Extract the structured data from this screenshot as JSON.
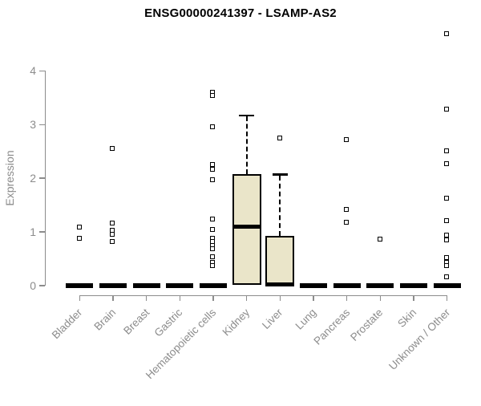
{
  "page": {
    "title": "ENSG00000241397 - LSAMP-AS2"
  },
  "chart_data": {
    "type": "boxplot",
    "title": "ENSG00000241397 - LSAMP-AS2",
    "ylabel": "Expression",
    "xlabel": "",
    "ylim": [
      0,
      4.8
    ],
    "yticks": [
      0,
      1,
      2,
      3,
      4
    ],
    "grid": false,
    "legend": false,
    "categories": [
      "Bladder",
      "Brain",
      "Breast",
      "Gastric",
      "Hematopoietic cells",
      "Kidney",
      "Liver",
      "Lung",
      "Pancreas",
      "Prostate",
      "Skin",
      "Unknown / Other"
    ],
    "boxes": [
      {
        "label": "Bladder",
        "q1": 0,
        "median": 0,
        "q3": 0,
        "whisker_low": 0,
        "whisker_high": 0,
        "outliers": [
          1.09,
          0.87
        ]
      },
      {
        "label": "Brain",
        "q1": 0,
        "median": 0,
        "q3": 0,
        "whisker_low": 0,
        "whisker_high": 0,
        "outliers": [
          2.55,
          1.16,
          1.03,
          0.95,
          0.82
        ]
      },
      {
        "label": "Breast",
        "q1": 0,
        "median": 0,
        "q3": 0,
        "whisker_low": 0,
        "whisker_high": 0,
        "outliers": []
      },
      {
        "label": "Gastric",
        "q1": 0,
        "median": 0,
        "q3": 0,
        "whisker_low": 0,
        "whisker_high": 0,
        "outliers": []
      },
      {
        "label": "Hematopoietic cells",
        "q1": 0,
        "median": 0,
        "q3": 0,
        "whisker_low": 0,
        "whisker_high": 0,
        "outliers": [
          3.6,
          3.54,
          2.95,
          2.25,
          2.16,
          1.97,
          1.24,
          1.04,
          0.88,
          0.82,
          0.74,
          0.68,
          0.53,
          0.42,
          0.36
        ]
      },
      {
        "label": "Kidney",
        "q1": 0.01,
        "median": 1.1,
        "q3": 2.08,
        "whisker_low": 0.01,
        "whisker_high": 3.17,
        "outliers": []
      },
      {
        "label": "Liver",
        "q1": 0,
        "median": 0.02,
        "q3": 0.93,
        "whisker_low": 0,
        "whisker_high": 2.07,
        "outliers": [
          2.75
        ]
      },
      {
        "label": "Lung",
        "q1": 0,
        "median": 0,
        "q3": 0,
        "whisker_low": 0,
        "whisker_high": 0,
        "outliers": []
      },
      {
        "label": "Pancreas",
        "q1": 0,
        "median": 0,
        "q3": 0,
        "whisker_low": 0,
        "whisker_high": 0,
        "outliers": [
          2.72,
          1.42,
          1.17
        ]
      },
      {
        "label": "Prostate",
        "q1": 0,
        "median": 0,
        "q3": 0,
        "whisker_low": 0,
        "whisker_high": 0,
        "outliers": [
          0.86
        ]
      },
      {
        "label": "Skin",
        "q1": 0,
        "median": 0,
        "q3": 0,
        "whisker_low": 0,
        "whisker_high": 0,
        "outliers": []
      },
      {
        "label": "Unknown / Other",
        "q1": 0,
        "median": 0,
        "q3": 0,
        "whisker_low": 0,
        "whisker_high": 0,
        "outliers": [
          4.68,
          3.28,
          2.5,
          2.27,
          1.62,
          1.2,
          0.93,
          0.84,
          0.52,
          0.42,
          0.37,
          0.16
        ]
      }
    ],
    "colors": {
      "background": "#ffffff",
      "box_fill": "#eae5c9",
      "box_border": "#000000",
      "median": "#000000",
      "whisker": "#000000",
      "outlier_border": "#000000",
      "axis": "#8c8c8c",
      "title": "#000000"
    }
  }
}
